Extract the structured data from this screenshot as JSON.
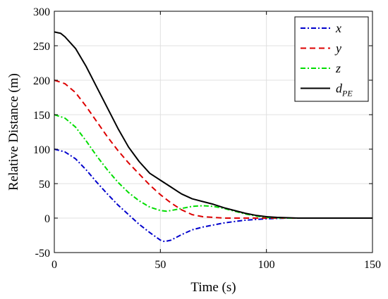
{
  "chart_data": {
    "type": "line",
    "xlabel": "Time (s)",
    "ylabel": "Relative Distance (m)",
    "xlim": [
      0,
      150
    ],
    "ylim": [
      -50,
      300
    ],
    "xticks": [
      0,
      50,
      100,
      150
    ],
    "yticks": [
      -50,
      0,
      50,
      100,
      150,
      200,
      250,
      300
    ],
    "grid": true,
    "legend_position": "top-right",
    "series": [
      {
        "name": "x",
        "color": "#0000cc",
        "dash": "dashdot",
        "x": [
          0,
          5,
          10,
          15,
          20,
          25,
          30,
          35,
          40,
          45,
          50,
          52,
          55,
          60,
          65,
          70,
          75,
          80,
          85,
          90,
          95,
          100,
          105,
          110,
          115,
          120,
          130,
          140,
          150
        ],
        "y": [
          100,
          96,
          86,
          70,
          52,
          35,
          19,
          5,
          -9,
          -21,
          -32,
          -34,
          -32,
          -24,
          -17,
          -13,
          -10,
          -7,
          -5,
          -3,
          -2,
          -1,
          -0.5,
          0,
          0,
          0,
          0,
          0,
          0
        ]
      },
      {
        "name": "y",
        "color": "#dd0000",
        "dash": "dashed",
        "x": [
          0,
          5,
          10,
          15,
          20,
          25,
          30,
          35,
          40,
          45,
          50,
          55,
          60,
          65,
          70,
          75,
          80,
          85,
          90,
          95,
          100,
          110,
          120,
          130,
          140,
          150
        ],
        "y": [
          200,
          195,
          182,
          162,
          140,
          118,
          98,
          80,
          64,
          48,
          34,
          22,
          12,
          5,
          2,
          1,
          0,
          0,
          0,
          0,
          0,
          0,
          0,
          0,
          0,
          0
        ]
      },
      {
        "name": "z",
        "color": "#00dd00",
        "dash": "dashdot",
        "x": [
          0,
          5,
          10,
          15,
          20,
          25,
          30,
          35,
          40,
          45,
          50,
          53,
          55,
          60,
          65,
          70,
          75,
          80,
          85,
          90,
          95,
          100,
          105,
          110,
          120,
          130,
          140,
          150
        ],
        "y": [
          150,
          145,
          132,
          112,
          90,
          70,
          52,
          37,
          25,
          16,
          11,
          10,
          11,
          14,
          17,
          18,
          17,
          14,
          10,
          6,
          3,
          1,
          0.5,
          0,
          0,
          0,
          0,
          0
        ]
      },
      {
        "name": "d_PE",
        "color": "#000000",
        "dash": "solid",
        "x": [
          0,
          3,
          5,
          10,
          15,
          20,
          25,
          30,
          35,
          40,
          45,
          50,
          55,
          60,
          65,
          70,
          75,
          80,
          85,
          90,
          95,
          100,
          105,
          110,
          115,
          120,
          130,
          140,
          150
        ],
        "y": [
          270,
          268,
          263,
          246,
          220,
          190,
          160,
          130,
          103,
          82,
          65,
          55,
          45,
          35,
          28,
          24,
          20,
          15,
          11,
          7,
          4,
          2,
          1,
          0.5,
          0,
          0,
          0,
          0,
          0
        ]
      }
    ]
  }
}
